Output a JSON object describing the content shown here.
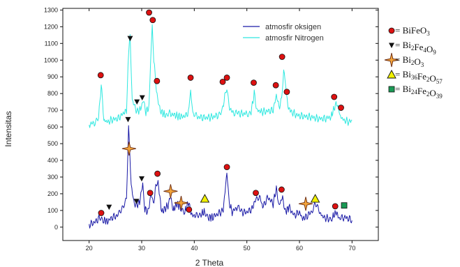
{
  "chart_data": {
    "type": "line",
    "xlabel": "2 Theta",
    "ylabel": "Intensitas",
    "xlim": [
      15,
      75
    ],
    "ylim": [
      -80,
      1310
    ],
    "xticks": [
      20,
      30,
      40,
      50,
      60,
      70
    ],
    "yticks": [
      0,
      100,
      200,
      300,
      400,
      500,
      600,
      700,
      800,
      900,
      1000,
      1100,
      1200,
      1300
    ],
    "grid": false,
    "legend_position": "top-right",
    "series": [
      {
        "name": "atmosfir oksigen",
        "color": "#1a1aa6",
        "points": [
          [
            20,
            15
          ],
          [
            21,
            28
          ],
          [
            22,
            55
          ],
          [
            22.8,
            45
          ],
          [
            23.5,
            35
          ],
          [
            24.5,
            60
          ],
          [
            25.5,
            70
          ],
          [
            26.3,
            120
          ],
          [
            27.1,
            170
          ],
          [
            27.5,
            590
          ],
          [
            27.75,
            440
          ],
          [
            28,
            250
          ],
          [
            28.5,
            150
          ],
          [
            29,
            130
          ],
          [
            29.6,
            150
          ],
          [
            30.2,
            260
          ],
          [
            30.6,
            110
          ],
          [
            31.2,
            90
          ],
          [
            31.8,
            200
          ],
          [
            32.2,
            140
          ],
          [
            32.7,
            240
          ],
          [
            33.1,
            270
          ],
          [
            33.8,
            90
          ],
          [
            34.4,
            110
          ],
          [
            35,
            130
          ],
          [
            35.5,
            185
          ],
          [
            36,
            100
          ],
          [
            36.7,
            140
          ],
          [
            37.4,
            120
          ],
          [
            38.2,
            90
          ],
          [
            38.9,
            150
          ],
          [
            39.5,
            70
          ],
          [
            40.5,
            70
          ],
          [
            41.3,
            80
          ],
          [
            42,
            90
          ],
          [
            42.8,
            60
          ],
          [
            43.5,
            60
          ],
          [
            44.5,
            80
          ],
          [
            45.5,
            100
          ],
          [
            46.2,
            330
          ],
          [
            46.6,
            150
          ],
          [
            47.2,
            90
          ],
          [
            48.2,
            120
          ],
          [
            49,
            90
          ],
          [
            50,
            90
          ],
          [
            51,
            110
          ],
          [
            51.6,
            160
          ],
          [
            52.4,
            190
          ],
          [
            53,
            120
          ],
          [
            54,
            180
          ],
          [
            55,
            140
          ],
          [
            55.6,
            230
          ],
          [
            56.1,
            130
          ],
          [
            56.8,
            180
          ],
          [
            57.3,
            90
          ],
          [
            58,
            120
          ],
          [
            59,
            70
          ],
          [
            60,
            90
          ],
          [
            60.6,
            50
          ],
          [
            61.2,
            60
          ],
          [
            62.2,
            90
          ],
          [
            63,
            140
          ],
          [
            63.8,
            90
          ],
          [
            64.5,
            60
          ],
          [
            65.5,
            50
          ],
          [
            66.3,
            60
          ],
          [
            67,
            90
          ],
          [
            67.6,
            50
          ],
          [
            68.5,
            60
          ],
          [
            69.5,
            50
          ],
          [
            70,
            40
          ]
        ]
      },
      {
        "name": "atmosfir Nitrogen",
        "color": "#2ee8e0",
        "points": [
          [
            20,
            615
          ],
          [
            21,
            625
          ],
          [
            21.8,
            650
          ],
          [
            22.3,
            860
          ],
          [
            22.8,
            640
          ],
          [
            23.5,
            630
          ],
          [
            24.5,
            645
          ],
          [
            25.5,
            650
          ],
          [
            26.5,
            680
          ],
          [
            27.1,
            700
          ],
          [
            27.4,
            980
          ],
          [
            27.8,
            1160
          ],
          [
            28.2,
            760
          ],
          [
            28.7,
            720
          ],
          [
            29.2,
            690
          ],
          [
            29.8,
            710
          ],
          [
            30.3,
            760
          ],
          [
            30.8,
            690
          ],
          [
            31.4,
            720
          ],
          [
            31.7,
            1000
          ],
          [
            32,
            1220
          ],
          [
            32.3,
            1000
          ],
          [
            32.8,
            820
          ],
          [
            33.3,
            720
          ],
          [
            33.8,
            690
          ],
          [
            34.5,
            670
          ],
          [
            35.3,
            680
          ],
          [
            36.3,
            670
          ],
          [
            37.5,
            660
          ],
          [
            38.5,
            670
          ],
          [
            39,
            700
          ],
          [
            39.3,
            840
          ],
          [
            39.7,
            680
          ],
          [
            40.5,
            660
          ],
          [
            42,
            655
          ],
          [
            43.5,
            660
          ],
          [
            44.5,
            670
          ],
          [
            45.3,
            690
          ],
          [
            45.8,
            790
          ],
          [
            46.2,
            830
          ],
          [
            46.6,
            720
          ],
          [
            47.2,
            690
          ],
          [
            48.5,
            680
          ],
          [
            50,
            680
          ],
          [
            50.8,
            690
          ],
          [
            51.4,
            800
          ],
          [
            51.9,
            700
          ],
          [
            53,
            690
          ],
          [
            54,
            695
          ],
          [
            55,
            700
          ],
          [
            55.6,
            790
          ],
          [
            56.1,
            720
          ],
          [
            56.6,
            760
          ],
          [
            57,
            930
          ],
          [
            57.4,
            860
          ],
          [
            57.8,
            720
          ],
          [
            58.5,
            690
          ],
          [
            59.5,
            670
          ],
          [
            60.5,
            665
          ],
          [
            62,
            660
          ],
          [
            63.5,
            650
          ],
          [
            65,
            650
          ],
          [
            66,
            660
          ],
          [
            66.7,
            720
          ],
          [
            67.2,
            740
          ],
          [
            67.8,
            660
          ],
          [
            68.5,
            640
          ],
          [
            69.5,
            630
          ],
          [
            70,
            640
          ]
        ]
      }
    ],
    "phases": [
      {
        "symbol": "circle",
        "color": "#dd1111",
        "label": "= BiFeO",
        "sub1": "3",
        "mid": "",
        "sub2": "",
        "tail": "",
        "sub3": ""
      },
      {
        "symbol": "triangle-down",
        "color": "#111111",
        "label": "= Bi",
        "sub1": "2",
        "mid": "Fe",
        "sub2": "4",
        "tail": "O",
        "sub3": "9"
      },
      {
        "symbol": "star",
        "color": "#f2a43a",
        "label": "= Bi",
        "sub1": "2",
        "mid": "O",
        "sub2": "3",
        "tail": "",
        "sub3": ""
      },
      {
        "symbol": "triangle-up",
        "color": "#f0f000",
        "label": "= Bi",
        "sub1": "36",
        "mid": "Fe",
        "sub2": "2",
        "tail": "O",
        "sub3": "57"
      },
      {
        "symbol": "square",
        "color": "#1a9a55",
        "label": "= Bi",
        "sub1": "24",
        "mid": "Fe",
        "sub2": "2",
        "tail": "O",
        "sub3": "39"
      }
    ],
    "peak_markers": [
      {
        "phase": "circle",
        "x": 22.2,
        "y": 910
      },
      {
        "phase": "circle",
        "x": 31.4,
        "y": 1285
      },
      {
        "phase": "circle",
        "x": 32.1,
        "y": 1240
      },
      {
        "phase": "circle",
        "x": 32.9,
        "y": 875
      },
      {
        "phase": "circle",
        "x": 39.3,
        "y": 895
      },
      {
        "phase": "circle",
        "x": 45.4,
        "y": 870
      },
      {
        "phase": "circle",
        "x": 46.2,
        "y": 895
      },
      {
        "phase": "circle",
        "x": 51.3,
        "y": 865
      },
      {
        "phase": "circle",
        "x": 55.5,
        "y": 850
      },
      {
        "phase": "circle",
        "x": 56.7,
        "y": 1020
      },
      {
        "phase": "circle",
        "x": 57.6,
        "y": 810
      },
      {
        "phase": "circle",
        "x": 66.6,
        "y": 780
      },
      {
        "phase": "circle",
        "x": 67.9,
        "y": 715
      },
      {
        "phase": "triangle-down",
        "x": 27.8,
        "y": 1130
      },
      {
        "phase": "triangle-down",
        "x": 29.1,
        "y": 750
      },
      {
        "phase": "triangle-down",
        "x": 30.1,
        "y": 775
      },
      {
        "phase": "circle",
        "x": 22.3,
        "y": 85
      },
      {
        "phase": "circle",
        "x": 31.6,
        "y": 205
      },
      {
        "phase": "circle",
        "x": 33.0,
        "y": 320
      },
      {
        "phase": "circle",
        "x": 39.0,
        "y": 105
      },
      {
        "phase": "circle",
        "x": 46.2,
        "y": 360
      },
      {
        "phase": "circle",
        "x": 51.7,
        "y": 205
      },
      {
        "phase": "circle",
        "x": 56.6,
        "y": 225
      },
      {
        "phase": "circle",
        "x": 66.8,
        "y": 125
      },
      {
        "phase": "triangle-down",
        "x": 23.8,
        "y": 120
      },
      {
        "phase": "triangle-down",
        "x": 27.4,
        "y": 645
      },
      {
        "phase": "triangle-down",
        "x": 29.0,
        "y": 155
      },
      {
        "phase": "triangle-down",
        "x": 30.0,
        "y": 290
      },
      {
        "phase": "star",
        "x": 27.6,
        "y": 470
      },
      {
        "phase": "star",
        "x": 35.5,
        "y": 215
      },
      {
        "phase": "star",
        "x": 37.5,
        "y": 145
      },
      {
        "phase": "star",
        "x": 61.2,
        "y": 140
      },
      {
        "phase": "triangle-up",
        "x": 42.0,
        "y": 170
      },
      {
        "phase": "triangle-up",
        "x": 63.0,
        "y": 170
      },
      {
        "phase": "square",
        "x": 68.5,
        "y": 130
      }
    ]
  }
}
